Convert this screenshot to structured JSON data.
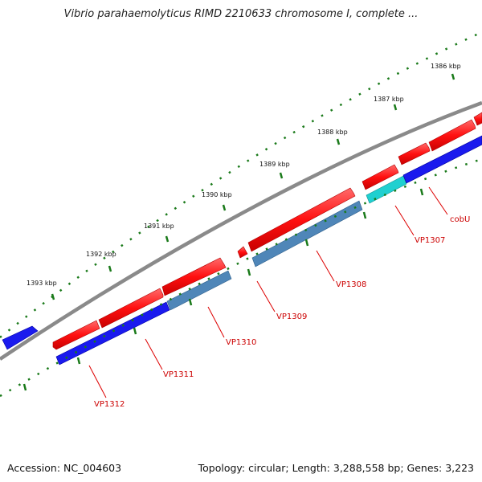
{
  "title": "Vibrio parahaemolyticus RIMD 2210633 chromosome I, complete ...",
  "scale_labels": [
    "1386 kbp",
    "1387 kbp",
    "1388 kbp",
    "1389 kbp",
    "1390 kbp",
    "1391 kbp",
    "1392 kbp",
    "1393 kbp"
  ],
  "gene_labels": [
    "cobU",
    "VP1307",
    "VP1308",
    "VP1309",
    "VP1310",
    "VP1311",
    "VP1312"
  ],
  "footer": {
    "accession": "Accession: NC_004603",
    "summary": "Topology: circular; Length: 3,288,558 bp; Genes: 3,223"
  },
  "colors": {
    "forward_gene": "#ff1010",
    "reverse_cds": "#1a1aee",
    "reverse_steel": "#4f86b8",
    "reverse_cyan": "#20d0d0",
    "backbone": "#888888",
    "tick": "#1a7a1a",
    "label": "#cc0000"
  }
}
